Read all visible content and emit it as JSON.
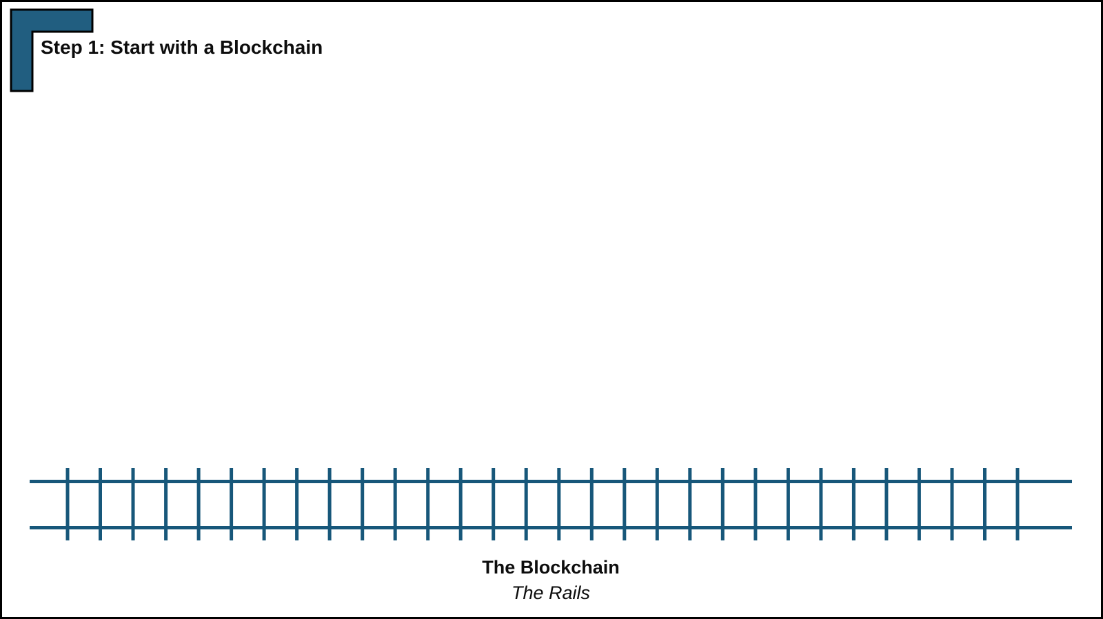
{
  "slide": {
    "title": "Step 1: Start with a Blockchain",
    "background_color": "#ffffff",
    "border_color": "#000000"
  },
  "corner_accent": {
    "fill_color": "#215E80",
    "outline_color": "#000000"
  },
  "diagram": {
    "type": "railroad-track",
    "rail_color": "#17577A",
    "rail_count": 2,
    "tie_count": 30,
    "label": "The Blockchain",
    "sublabel": "The Rails",
    "label_color": "#0d0d0d"
  }
}
